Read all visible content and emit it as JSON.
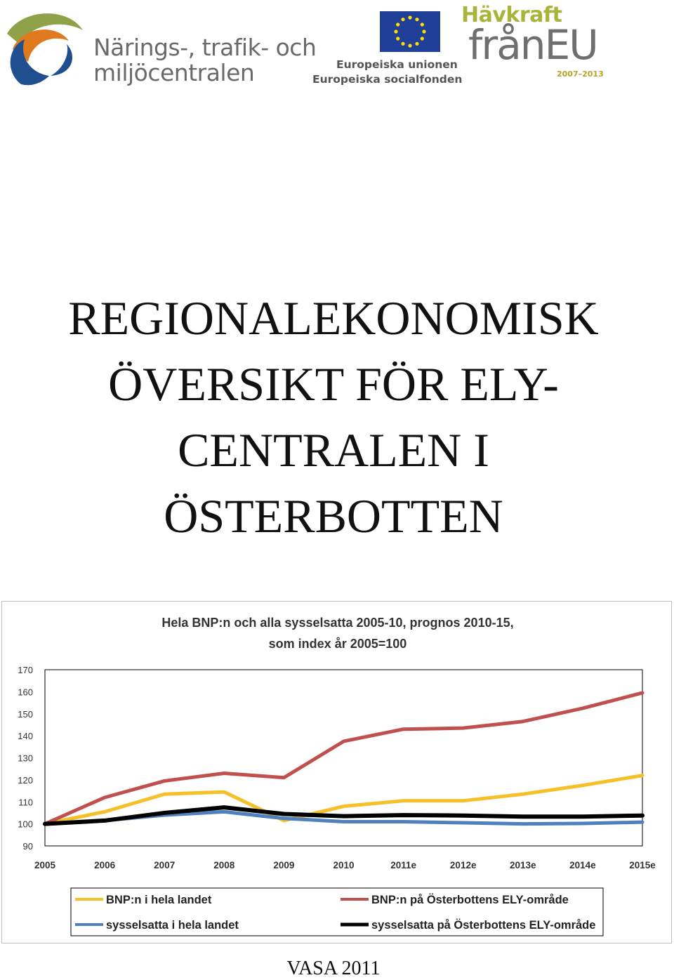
{
  "logos": {
    "ntm": {
      "line1": "Närings-, trafik- och",
      "line2": "miljöcentralen"
    },
    "eu": {
      "line1": "Europeiska unionen",
      "line2": "Europeiska socialfonden"
    },
    "havkraft": {
      "top": "Hävkraft",
      "main": "frånEU",
      "years": "2007–2013"
    }
  },
  "title": {
    "line1": "REGIONALEKONOMISK",
    "line2": "ÖVERSIKT FÖR ELY-",
    "line3": "CENTRALEN I",
    "line4": "ÖSTERBOTTEN"
  },
  "chart_data": {
    "type": "line",
    "title_line1": "Hela BNP:n och alla sysselsatta 2005-10, prognos 2010-15,",
    "title_line2": "som index år 2005=100",
    "categories": [
      "2005",
      "2006",
      "2007",
      "2008",
      "2009",
      "2010",
      "2011e",
      "2012e",
      "2013e",
      "2014e",
      "2015e"
    ],
    "ylim": [
      90,
      170
    ],
    "yticks": [
      90,
      100,
      110,
      120,
      130,
      140,
      150,
      160,
      170
    ],
    "grid": false,
    "legend_position": "bottom",
    "series": [
      {
        "name": "BNP:n i hela landet",
        "color": "#f5c02a",
        "values": [
          100,
          105.5,
          113.5,
          114.5,
          101.5,
          108,
          110.5,
          110.5,
          113.5,
          117.5,
          122
        ]
      },
      {
        "name": "BNP:n på Österbottens ELY-område",
        "color": "#c0504d",
        "values": [
          100,
          112,
          119.5,
          123,
          121,
          137.5,
          143,
          143.5,
          146.5,
          152.5,
          159.5
        ]
      },
      {
        "name": "sysselsatta i hela landet",
        "color": "#4f81bd",
        "values": [
          100,
          101.5,
          104,
          105.5,
          102.5,
          101,
          101,
          100.5,
          100,
          100.2,
          100.8
        ]
      },
      {
        "name": "sysselsatta på Österbottens ELY-område",
        "color": "#000000",
        "values": [
          100,
          101.5,
          105,
          107.5,
          104.5,
          103.5,
          104,
          103.8,
          103.3,
          103.3,
          103.8
        ]
      }
    ]
  },
  "footer": {
    "place": "VASA 2011"
  }
}
